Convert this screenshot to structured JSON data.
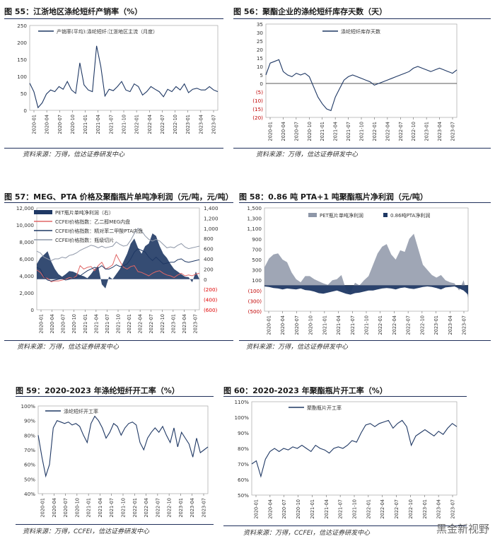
{
  "panels": [
    {
      "title": "图 55：江浙地区涤纶短纤产销率（%）",
      "source": "资料来源：万得，信达证券研发中心"
    },
    {
      "title": "图 56：聚酯企业的涤纶短纤库存天数（天）",
      "source": "资料来源：万得，信达证券研发中心"
    },
    {
      "title": "图 57：MEG、PTA 价格及聚酯瓶片单吨净利润（元/吨，元/吨）",
      "source": "资料来源：万得，信达证券研发中心"
    },
    {
      "title": "图 58：0.86 吨 PTA+1 吨聚酯瓶片净利润（元/吨）",
      "source": "资料来源：万得，信达证券研发中心"
    },
    {
      "title": "图 59：2020-2023 年涤纶短纤开工率（%）",
      "source": "资料来源：万得，CCFEI，信达证券研发中心"
    },
    {
      "title": "图 60：2020-2023 年聚酯瓶片开工率（%）",
      "source": "资料来源：万得，CCFEI，信达证券研发中心"
    }
  ],
  "watermark": "黑金新视野",
  "colors": {
    "navy": "#1f3864",
    "red": "#e06666",
    "gray": "#8e97a8",
    "axis": "#333333"
  },
  "chart_data": [
    {
      "id": "c55",
      "type": "line",
      "title": "江浙地区涤纶短纤产销率（%）",
      "ylim": [
        0,
        250
      ],
      "yticks": [
        "0",
        "50",
        "100",
        "150",
        "200",
        "250"
      ],
      "xticks": [
        "2020-01",
        "2020-04",
        "2020-07",
        "2020-10",
        "2021-01",
        "2021-04",
        "2021-07",
        "2021-10",
        "2022-01",
        "2022-04",
        "2022-07",
        "2022-10",
        "2023-01",
        "2023-04",
        "2023-07"
      ],
      "series": [
        {
          "name": "产销率(平均):涤纶短纤:江浙地区主流（月度）",
          "values": [
            80,
            55,
            8,
            22,
            48,
            60,
            55,
            70,
            62,
            85,
            60,
            50,
            140,
            75,
            60,
            55,
            190,
            130,
            42,
            62,
            58,
            70,
            85,
            60,
            55,
            78,
            70,
            45,
            55,
            70,
            62,
            55,
            40,
            62,
            55,
            70,
            60,
            78,
            52,
            62,
            65,
            60,
            60,
            70,
            60,
            55
          ]
        }
      ]
    },
    {
      "id": "c56",
      "type": "line",
      "title": "聚酯企业的涤纶短纤库存天数（天）",
      "ylim": [
        -20,
        35
      ],
      "yticks": [
        "(20)",
        "(15)",
        "(10)",
        "(5)",
        "0",
        "5",
        "10",
        "15",
        "20",
        "25",
        "30",
        "35"
      ],
      "xticks": [
        "2020-01",
        "2020-04",
        "2020-07",
        "2020-10",
        "2021-01",
        "2021-04",
        "2021-07",
        "2021-10",
        "2022-01",
        "2022-04",
        "2022-07",
        "2022-10",
        "2023-01",
        "2023-04",
        "2023-07"
      ],
      "series": [
        {
          "name": "涤纶短纤库存天数",
          "values": [
            5,
            12,
            13,
            14,
            7,
            5,
            4,
            6,
            5,
            6,
            4,
            -2,
            -8,
            -12,
            -15,
            -16,
            -8,
            -3,
            2,
            4,
            5,
            4,
            3,
            2,
            1,
            -1,
            0,
            1,
            2,
            3,
            4,
            5,
            6,
            7,
            9,
            10,
            9,
            8,
            7,
            8,
            9,
            8,
            7,
            6,
            8
          ]
        }
      ]
    },
    {
      "id": "c57",
      "type": "combo",
      "title": "MEG、PTA 价格及聚酯瓶片单吨净利润",
      "ylim": [
        0,
        12000
      ],
      "ylim_right": [
        -600,
        1400
      ],
      "yticks": [
        "0",
        "2,000",
        "4,000",
        "6,000",
        "8,000",
        "10,000",
        "12,000"
      ],
      "yticks_right": [
        "(600)",
        "(400)",
        "(200)",
        "0",
        "200",
        "400",
        "600",
        "800",
        "1,000",
        "1,200",
        "1,400"
      ],
      "xticks": [
        "2020-01",
        "2020-04",
        "2020-07",
        "2020-10",
        "2021-01",
        "2021-04",
        "2021-07",
        "2021-10",
        "2022-01",
        "2022-04",
        "2022-07",
        "2022-10",
        "2023-01",
        "2023-04",
        "2023-07"
      ],
      "series": [
        {
          "name": "PET瓶片单吨净利润（右）",
          "kind": "area",
          "axis": "right",
          "values": [
            300,
            420,
            480,
            550,
            350,
            200,
            100,
            50,
            100,
            160,
            150,
            120,
            80,
            60,
            20,
            100,
            200,
            250,
            -100,
            -180,
            50,
            0,
            100,
            200,
            350,
            500,
            700,
            800,
            620,
            500,
            650,
            700,
            900,
            850,
            650,
            500,
            420,
            300,
            200,
            150,
            100,
            50,
            40,
            -60,
            150,
            0
          ]
        },
        {
          "name": "CCFEI价格指数：乙二醇MEG内盘",
          "kind": "line",
          "axis": "left",
          "values": [
            4700,
            4400,
            3800,
            3700,
            3300,
            3400,
            3400,
            3500,
            3600,
            3800,
            3700,
            4000,
            5200,
            4800,
            5000,
            5100,
            4600,
            5200,
            5600,
            4800,
            5000,
            5300,
            6500,
            5700,
            5000,
            4800,
            5100,
            5200,
            4500,
            4400,
            4200,
            4000,
            4300,
            4500,
            4600,
            4300,
            4100,
            4000,
            3800,
            4100,
            4300,
            4000,
            4100,
            4000,
            4200,
            4300
          ]
        },
        {
          "name": "CCFEI价格指数：精对苯二甲酸PTA内盘",
          "kind": "line",
          "axis": "left",
          "values": [
            5000,
            4800,
            3900,
            3500,
            3400,
            3500,
            3600,
            3700,
            3500,
            3600,
            3700,
            3800,
            4000,
            4300,
            4600,
            4800,
            5000,
            4900,
            5200,
            4800,
            4800,
            5000,
            5300,
            5100,
            5200,
            5400,
            6000,
            6800,
            7200,
            7000,
            6800,
            6200,
            5800,
            6200,
            5800,
            5400,
            5500,
            5600,
            5600,
            5900,
            6000,
            5700,
            5600,
            5700,
            5800,
            5900
          ]
        },
        {
          "name": "CCFEI价格指数：瓶级切片",
          "kind": "line",
          "axis": "left",
          "values": [
            6900,
            6700,
            6200,
            6000,
            5800,
            6000,
            6000,
            6200,
            6100,
            6400,
            6500,
            6700,
            7000,
            7200,
            7400,
            7600,
            7500,
            7300,
            7500,
            7300,
            7400,
            7500,
            8000,
            7700,
            7500,
            7600,
            8200,
            9000,
            9600,
            9300,
            8700,
            8300,
            8100,
            8300,
            8100,
            7700,
            7300,
            7400,
            7300,
            7600,
            7800,
            7400,
            7200,
            7300,
            7400,
            7500
          ]
        }
      ]
    },
    {
      "id": "c58",
      "type": "area",
      "title": "0.86 吨 PTA+1 吨聚酯瓶片净利润（元/吨）",
      "ylim": [
        -500,
        1500
      ],
      "yticks": [
        "(500)",
        "(300)",
        "(100)",
        "100",
        "300",
        "500",
        "700",
        "900",
        "1,100",
        "1,300",
        "1,500"
      ],
      "xticks": [
        "2020-01",
        "2020-04",
        "2020-07",
        "2020-10",
        "2021-01",
        "2021-04",
        "2021-07",
        "2021-10",
        "2022-01",
        "2022-04",
        "2022-07",
        "2022-10",
        "2023-01",
        "2023-04",
        "2023-07"
      ],
      "series": [
        {
          "name": "PET瓶片单吨净利润",
          "values": [
            350,
            520,
            600,
            620,
            500,
            450,
            250,
            120,
            60,
            180,
            180,
            120,
            80,
            40,
            10,
            100,
            120,
            200,
            -80,
            -150,
            50,
            0,
            100,
            180,
            400,
            620,
            750,
            800,
            600,
            500,
            680,
            650,
            900,
            1000,
            700,
            400,
            300,
            200,
            150,
            200,
            100,
            60,
            40,
            -100,
            100,
            -250
          ]
        },
        {
          "name": "0.86吨PTA净利润",
          "values": [
            -20,
            -30,
            -50,
            -60,
            -80,
            -60,
            -70,
            -80,
            -60,
            -90,
            -100,
            -120,
            -150,
            -160,
            -140,
            -120,
            -100,
            -130,
            -160,
            -180,
            -150,
            -140,
            -120,
            -100,
            -100,
            -80,
            -60,
            -50,
            -60,
            -80,
            -50,
            -40,
            -60,
            -70,
            -50,
            -30,
            -20,
            -30,
            -50,
            -80,
            -40,
            -30,
            -20,
            -60,
            -100,
            -180
          ]
        }
      ]
    },
    {
      "id": "c59",
      "type": "line",
      "title": "2020-2023 年涤纶短纤开工率（%）",
      "ylim": [
        40,
        100
      ],
      "yticks": [
        "40%",
        "50%",
        "60%",
        "70%",
        "80%",
        "90%",
        "100%"
      ],
      "xticks": [
        "2020-01",
        "2020-04",
        "2020-07",
        "2020-10",
        "2021-01",
        "2021-04",
        "2021-07",
        "2021-10",
        "2022-01",
        "2022-04",
        "2022-07",
        "2022-10",
        "2023-01",
        "2023-04",
        "2023-07"
      ],
      "series": [
        {
          "name": "涤纶短纤开工率",
          "values": [
            80,
            65,
            52,
            60,
            85,
            90,
            89,
            88,
            89,
            87,
            88,
            86,
            80,
            75,
            88,
            93,
            90,
            85,
            78,
            82,
            88,
            86,
            80,
            85,
            88,
            89,
            87,
            75,
            70,
            78,
            82,
            85,
            82,
            86,
            80,
            75,
            85,
            72,
            82,
            78,
            74,
            65,
            78,
            68,
            70,
            72
          ]
        }
      ]
    },
    {
      "id": "c60",
      "type": "line",
      "title": "2020-2023 年聚酯瓶片开工率（%）",
      "ylim": [
        50,
        110
      ],
      "yticks": [
        "50%",
        "60%",
        "70%",
        "80%",
        "90%",
        "100%",
        "110%"
      ],
      "xticks": [
        "2020-01",
        "2020-04",
        "2020-07",
        "2020-10",
        "2021-01",
        "2021-04",
        "2021-07",
        "2021-10",
        "2022-01",
        "2022-04",
        "2022-07",
        "2022-10",
        "2023-01",
        "2023-04",
        "2023-07"
      ],
      "series": [
        {
          "name": "聚酯瓶片开工率",
          "values": [
            70,
            72,
            62,
            73,
            78,
            80,
            78,
            80,
            79,
            81,
            80,
            82,
            80,
            78,
            82,
            80,
            79,
            77,
            80,
            81,
            80,
            82,
            85,
            84,
            90,
            95,
            96,
            94,
            96,
            97,
            98,
            93,
            96,
            98,
            94,
            82,
            88,
            90,
            92,
            90,
            88,
            91,
            89,
            93,
            96,
            94
          ]
        }
      ]
    }
  ]
}
